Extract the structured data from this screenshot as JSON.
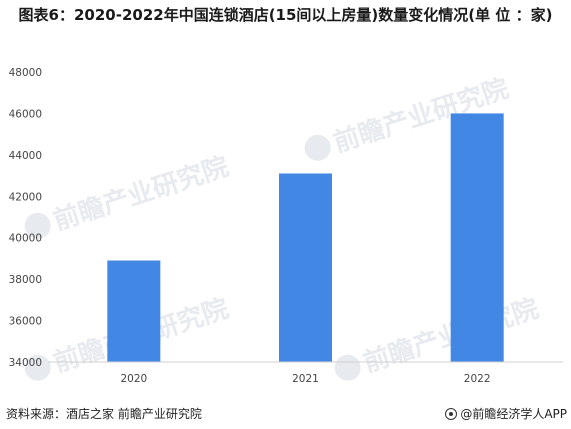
{
  "title": "图表6：2020-2022年中国连锁酒店(15间以上房量)数量变化情况(单 位 ：家)",
  "chart_data": {
    "type": "bar",
    "categories": [
      "2020",
      "2021",
      "2022"
    ],
    "values": [
      38900,
      43100,
      46000
    ],
    "ylim": [
      34000,
      48000
    ],
    "yticks": [
      "34000",
      "36000",
      "38000",
      "40000",
      "42000",
      "44000",
      "46000",
      "48000"
    ],
    "grid": false,
    "legend": "none",
    "bar_color": "#4287e3"
  },
  "footer": {
    "source": "资料来源：酒店之家 前瞻产业研究院",
    "credit": "@前瞻经济学人APP"
  },
  "watermark": {
    "text": "前瞻产业研究院"
  },
  "colors": {
    "bar": "#4287e3",
    "axis": "#d0d0d0",
    "tick_text": "#444444"
  }
}
